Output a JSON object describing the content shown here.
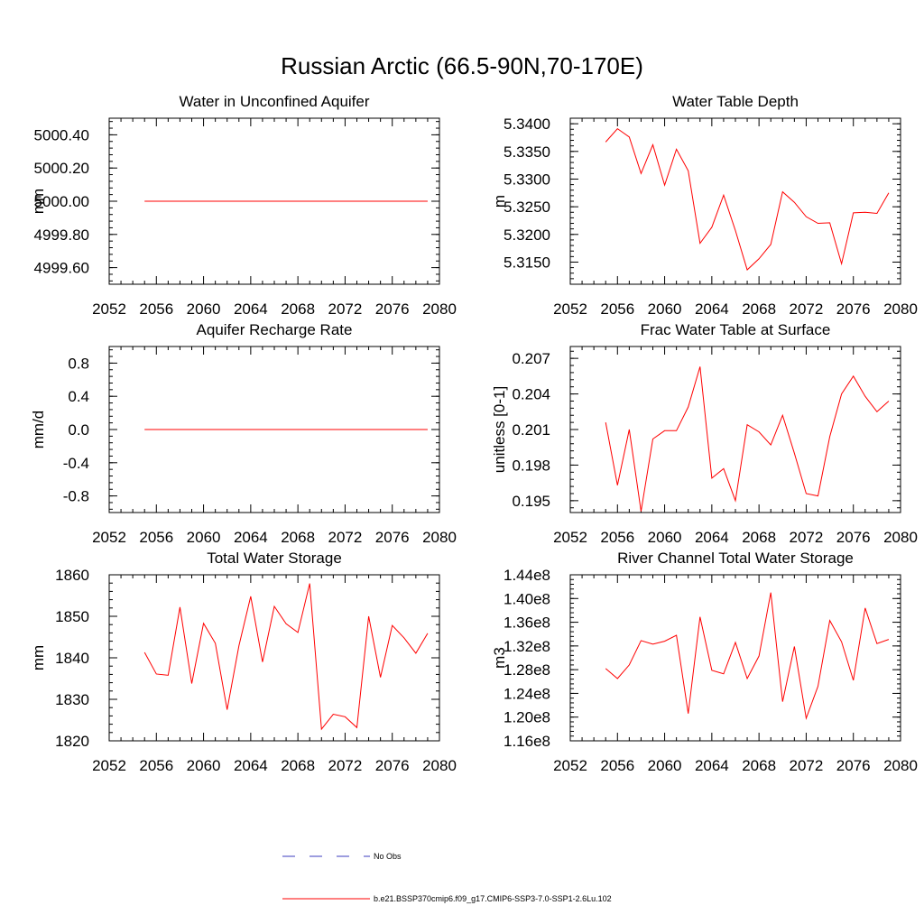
{
  "figure": {
    "title": "Russian Arctic (66.5-90N,70-170E)"
  },
  "colors": {
    "case_line": "#ff0000",
    "obs_line": "#3b3bbf",
    "axis": "#000000"
  },
  "legend": {
    "obs_label": "No Obs",
    "case_label": "b.e21.BSSP370cmip6.f09_g17.CMIP6-SSP3-7.0-SSP1-2.6Lu.102"
  },
  "chart_data": [
    {
      "type": "line",
      "title": "Water in Unconfined Aquifer",
      "ylabel": "mm",
      "xlim": [
        2052,
        2080
      ],
      "ylim": [
        4999.5,
        5000.5
      ],
      "xticks": [
        "2052",
        "2056",
        "2060",
        "2064",
        "2068",
        "2072",
        "2076",
        "2080"
      ],
      "yticks": [
        {
          "v": 4999.6,
          "label": "4999.60"
        },
        {
          "v": 4999.8,
          "label": "4999.80"
        },
        {
          "v": 5000.0,
          "label": "5000.00"
        },
        {
          "v": 5000.2,
          "label": "5000.20"
        },
        {
          "v": 5000.4,
          "label": "5000.40"
        }
      ],
      "series": [
        {
          "x": [
            2055,
            2056,
            2057,
            2058,
            2059,
            2060,
            2061,
            2062,
            2063,
            2064,
            2065,
            2066,
            2067,
            2068,
            2069,
            2070,
            2071,
            2072,
            2073,
            2074,
            2075,
            2076,
            2077,
            2078,
            2079
          ],
          "y": [
            5000,
            5000,
            5000,
            5000,
            5000,
            5000,
            5000,
            5000,
            5000,
            5000,
            5000,
            5000,
            5000,
            5000,
            5000,
            5000,
            5000,
            5000,
            5000,
            5000,
            5000,
            5000,
            5000,
            5000,
            5000
          ]
        }
      ]
    },
    {
      "type": "line",
      "title": "Water Table Depth",
      "ylabel": "m",
      "xlim": [
        2052,
        2080
      ],
      "ylim": [
        5.311,
        5.341
      ],
      "xticks": [
        "2052",
        "2056",
        "2060",
        "2064",
        "2068",
        "2072",
        "2076",
        "2080"
      ],
      "yticks": [
        {
          "v": 5.315,
          "label": "5.3150"
        },
        {
          "v": 5.32,
          "label": "5.3200"
        },
        {
          "v": 5.325,
          "label": "5.3250"
        },
        {
          "v": 5.33,
          "label": "5.3300"
        },
        {
          "v": 5.335,
          "label": "5.3350"
        },
        {
          "v": 5.34,
          "label": "5.3400"
        }
      ],
      "series": [
        {
          "x": [
            2055,
            2056,
            2057,
            2058,
            2059,
            2060,
            2061,
            2062,
            2063,
            2064,
            2065,
            2066,
            2067,
            2068,
            2069,
            2070,
            2071,
            2072,
            2073,
            2074,
            2075,
            2076,
            2077,
            2078,
            2079
          ],
          "y": [
            5.3367,
            5.3391,
            5.3376,
            5.331,
            5.3362,
            5.3289,
            5.3354,
            5.3315,
            5.3184,
            5.3213,
            5.3271,
            5.3207,
            5.3136,
            5.3156,
            5.3182,
            5.3277,
            5.3258,
            5.3232,
            5.322,
            5.3221,
            5.3147,
            5.3239,
            5.324,
            5.3238,
            5.3275
          ]
        }
      ]
    },
    {
      "type": "line",
      "title": "Aquifer Recharge Rate",
      "ylabel": "mm/d",
      "xlim": [
        2052,
        2080
      ],
      "ylim": [
        -1.0,
        1.0
      ],
      "xticks": [
        "2052",
        "2056",
        "2060",
        "2064",
        "2068",
        "2072",
        "2076",
        "2080"
      ],
      "yticks": [
        {
          "v": -0.8,
          "label": "-0.8"
        },
        {
          "v": -0.4,
          "label": "-0.4"
        },
        {
          "v": 0.0,
          "label": "0.0"
        },
        {
          "v": 0.4,
          "label": "0.4"
        },
        {
          "v": 0.8,
          "label": "0.8"
        }
      ],
      "series": [
        {
          "x": [
            2055,
            2056,
            2057,
            2058,
            2059,
            2060,
            2061,
            2062,
            2063,
            2064,
            2065,
            2066,
            2067,
            2068,
            2069,
            2070,
            2071,
            2072,
            2073,
            2074,
            2075,
            2076,
            2077,
            2078,
            2079
          ],
          "y": [
            0,
            0,
            0,
            0,
            0,
            0,
            0,
            0,
            0,
            0,
            0,
            0,
            0,
            0,
            0,
            0,
            0,
            0,
            0,
            0,
            0,
            0,
            0,
            0,
            0
          ]
        }
      ]
    },
    {
      "type": "line",
      "title": "Frac Water Table at Surface",
      "ylabel": "unitless [0-1]",
      "xlim": [
        2052,
        2080
      ],
      "ylim": [
        0.194,
        0.208
      ],
      "xticks": [
        "2052",
        "2056",
        "2060",
        "2064",
        "2068",
        "2072",
        "2076",
        "2080"
      ],
      "yticks": [
        {
          "v": 0.195,
          "label": "0.195"
        },
        {
          "v": 0.198,
          "label": "0.198"
        },
        {
          "v": 0.201,
          "label": "0.201"
        },
        {
          "v": 0.204,
          "label": "0.204"
        },
        {
          "v": 0.207,
          "label": "0.207"
        }
      ],
      "series": [
        {
          "x": [
            2055,
            2056,
            2057,
            2058,
            2059,
            2060,
            2061,
            2062,
            2063,
            2064,
            2065,
            2066,
            2067,
            2068,
            2069,
            2070,
            2071,
            2072,
            2073,
            2074,
            2075,
            2076,
            2077,
            2078,
            2079
          ],
          "y": [
            0.2016,
            0.1963,
            0.201,
            0.1941,
            0.2002,
            0.2009,
            0.2009,
            0.2029,
            0.2063,
            0.1969,
            0.1977,
            0.195,
            0.2014,
            0.2008,
            0.1997,
            0.2022,
            0.199,
            0.1956,
            0.1954,
            0.2004,
            0.204,
            0.2055,
            0.2038,
            0.2025,
            0.2034
          ]
        }
      ]
    },
    {
      "type": "line",
      "title": "Total Water Storage",
      "ylabel": "mm",
      "xlim": [
        2052,
        2080
      ],
      "ylim": [
        1820,
        1860
      ],
      "xticks": [
        "2052",
        "2056",
        "2060",
        "2064",
        "2068",
        "2072",
        "2076",
        "2080"
      ],
      "yticks": [
        {
          "v": 1820,
          "label": "1820"
        },
        {
          "v": 1830,
          "label": "1830"
        },
        {
          "v": 1840,
          "label": "1840"
        },
        {
          "v": 1850,
          "label": "1850"
        },
        {
          "v": 1860,
          "label": "1860"
        }
      ],
      "series": [
        {
          "x": [
            2055,
            2056,
            2057,
            2058,
            2059,
            2060,
            2061,
            2062,
            2063,
            2064,
            2065,
            2066,
            2067,
            2068,
            2069,
            2070,
            2071,
            2072,
            2073,
            2074,
            2075,
            2076,
            2077,
            2078,
            2079
          ],
          "y": [
            1841.3,
            1836.1,
            1835.8,
            1852.2,
            1833.8,
            1848.3,
            1843.5,
            1827.5,
            1842.9,
            1854.8,
            1839.0,
            1852.4,
            1848.2,
            1846.1,
            1857.9,
            1822.8,
            1826.4,
            1825.8,
            1823.2,
            1850.0,
            1835.3,
            1847.8,
            1844.8,
            1841.1,
            1845.9
          ]
        }
      ]
    },
    {
      "type": "line",
      "title": "River Channel Total Water Storage",
      "ylabel": "m3",
      "xlim": [
        2052,
        2080
      ],
      "ylim": [
        116000000,
        144000000
      ],
      "xticks": [
        "2052",
        "2056",
        "2060",
        "2064",
        "2068",
        "2072",
        "2076",
        "2080"
      ],
      "yticks": [
        {
          "v": 116000000,
          "label": "1.16e8"
        },
        {
          "v": 120000000,
          "label": "1.20e8"
        },
        {
          "v": 124000000,
          "label": "1.24e8"
        },
        {
          "v": 128000000,
          "label": "1.28e8"
        },
        {
          "v": 132000000,
          "label": "1.32e8"
        },
        {
          "v": 136000000,
          "label": "1.36e8"
        },
        {
          "v": 140000000,
          "label": "1.40e8"
        },
        {
          "v": 144000000,
          "label": "1.44e8"
        }
      ],
      "series": [
        {
          "x": [
            2055,
            2056,
            2057,
            2058,
            2059,
            2060,
            2061,
            2062,
            2063,
            2064,
            2065,
            2066,
            2067,
            2068,
            2069,
            2070,
            2071,
            2072,
            2073,
            2074,
            2075,
            2076,
            2077,
            2078,
            2079
          ],
          "y": [
            128200000,
            126500000,
            128800000,
            132900000,
            132300000,
            132800000,
            133800000,
            120600000,
            136900000,
            127900000,
            127300000,
            132600000,
            126500000,
            130300000,
            141000000,
            122600000,
            131900000,
            119800000,
            125200000,
            136300000,
            132700000,
            126200000,
            138400000,
            132400000,
            133100000
          ]
        }
      ]
    }
  ]
}
